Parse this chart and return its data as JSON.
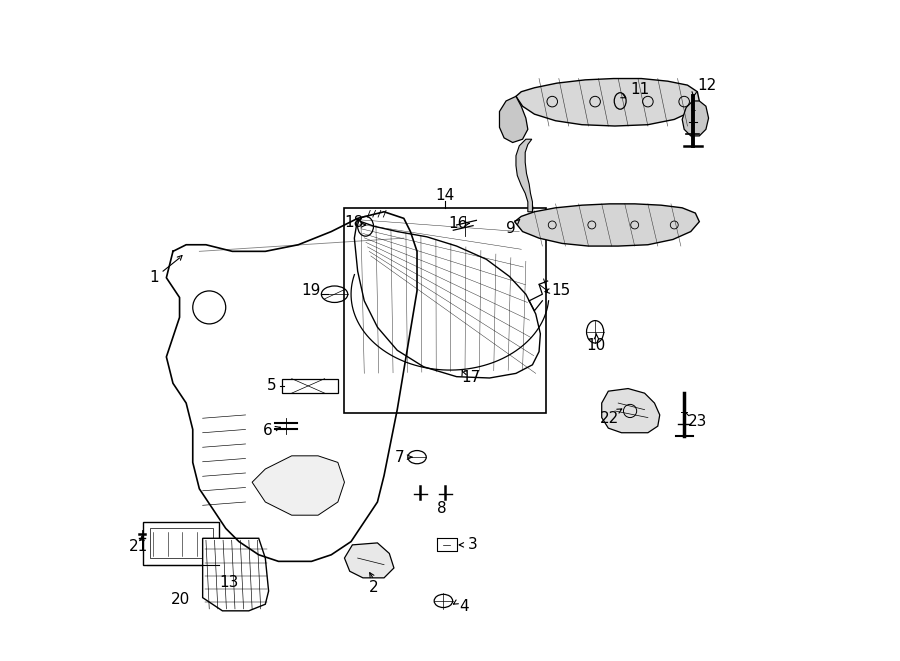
{
  "bg_color": "#ffffff",
  "line_color": "#000000",
  "label_fontsize": 11
}
